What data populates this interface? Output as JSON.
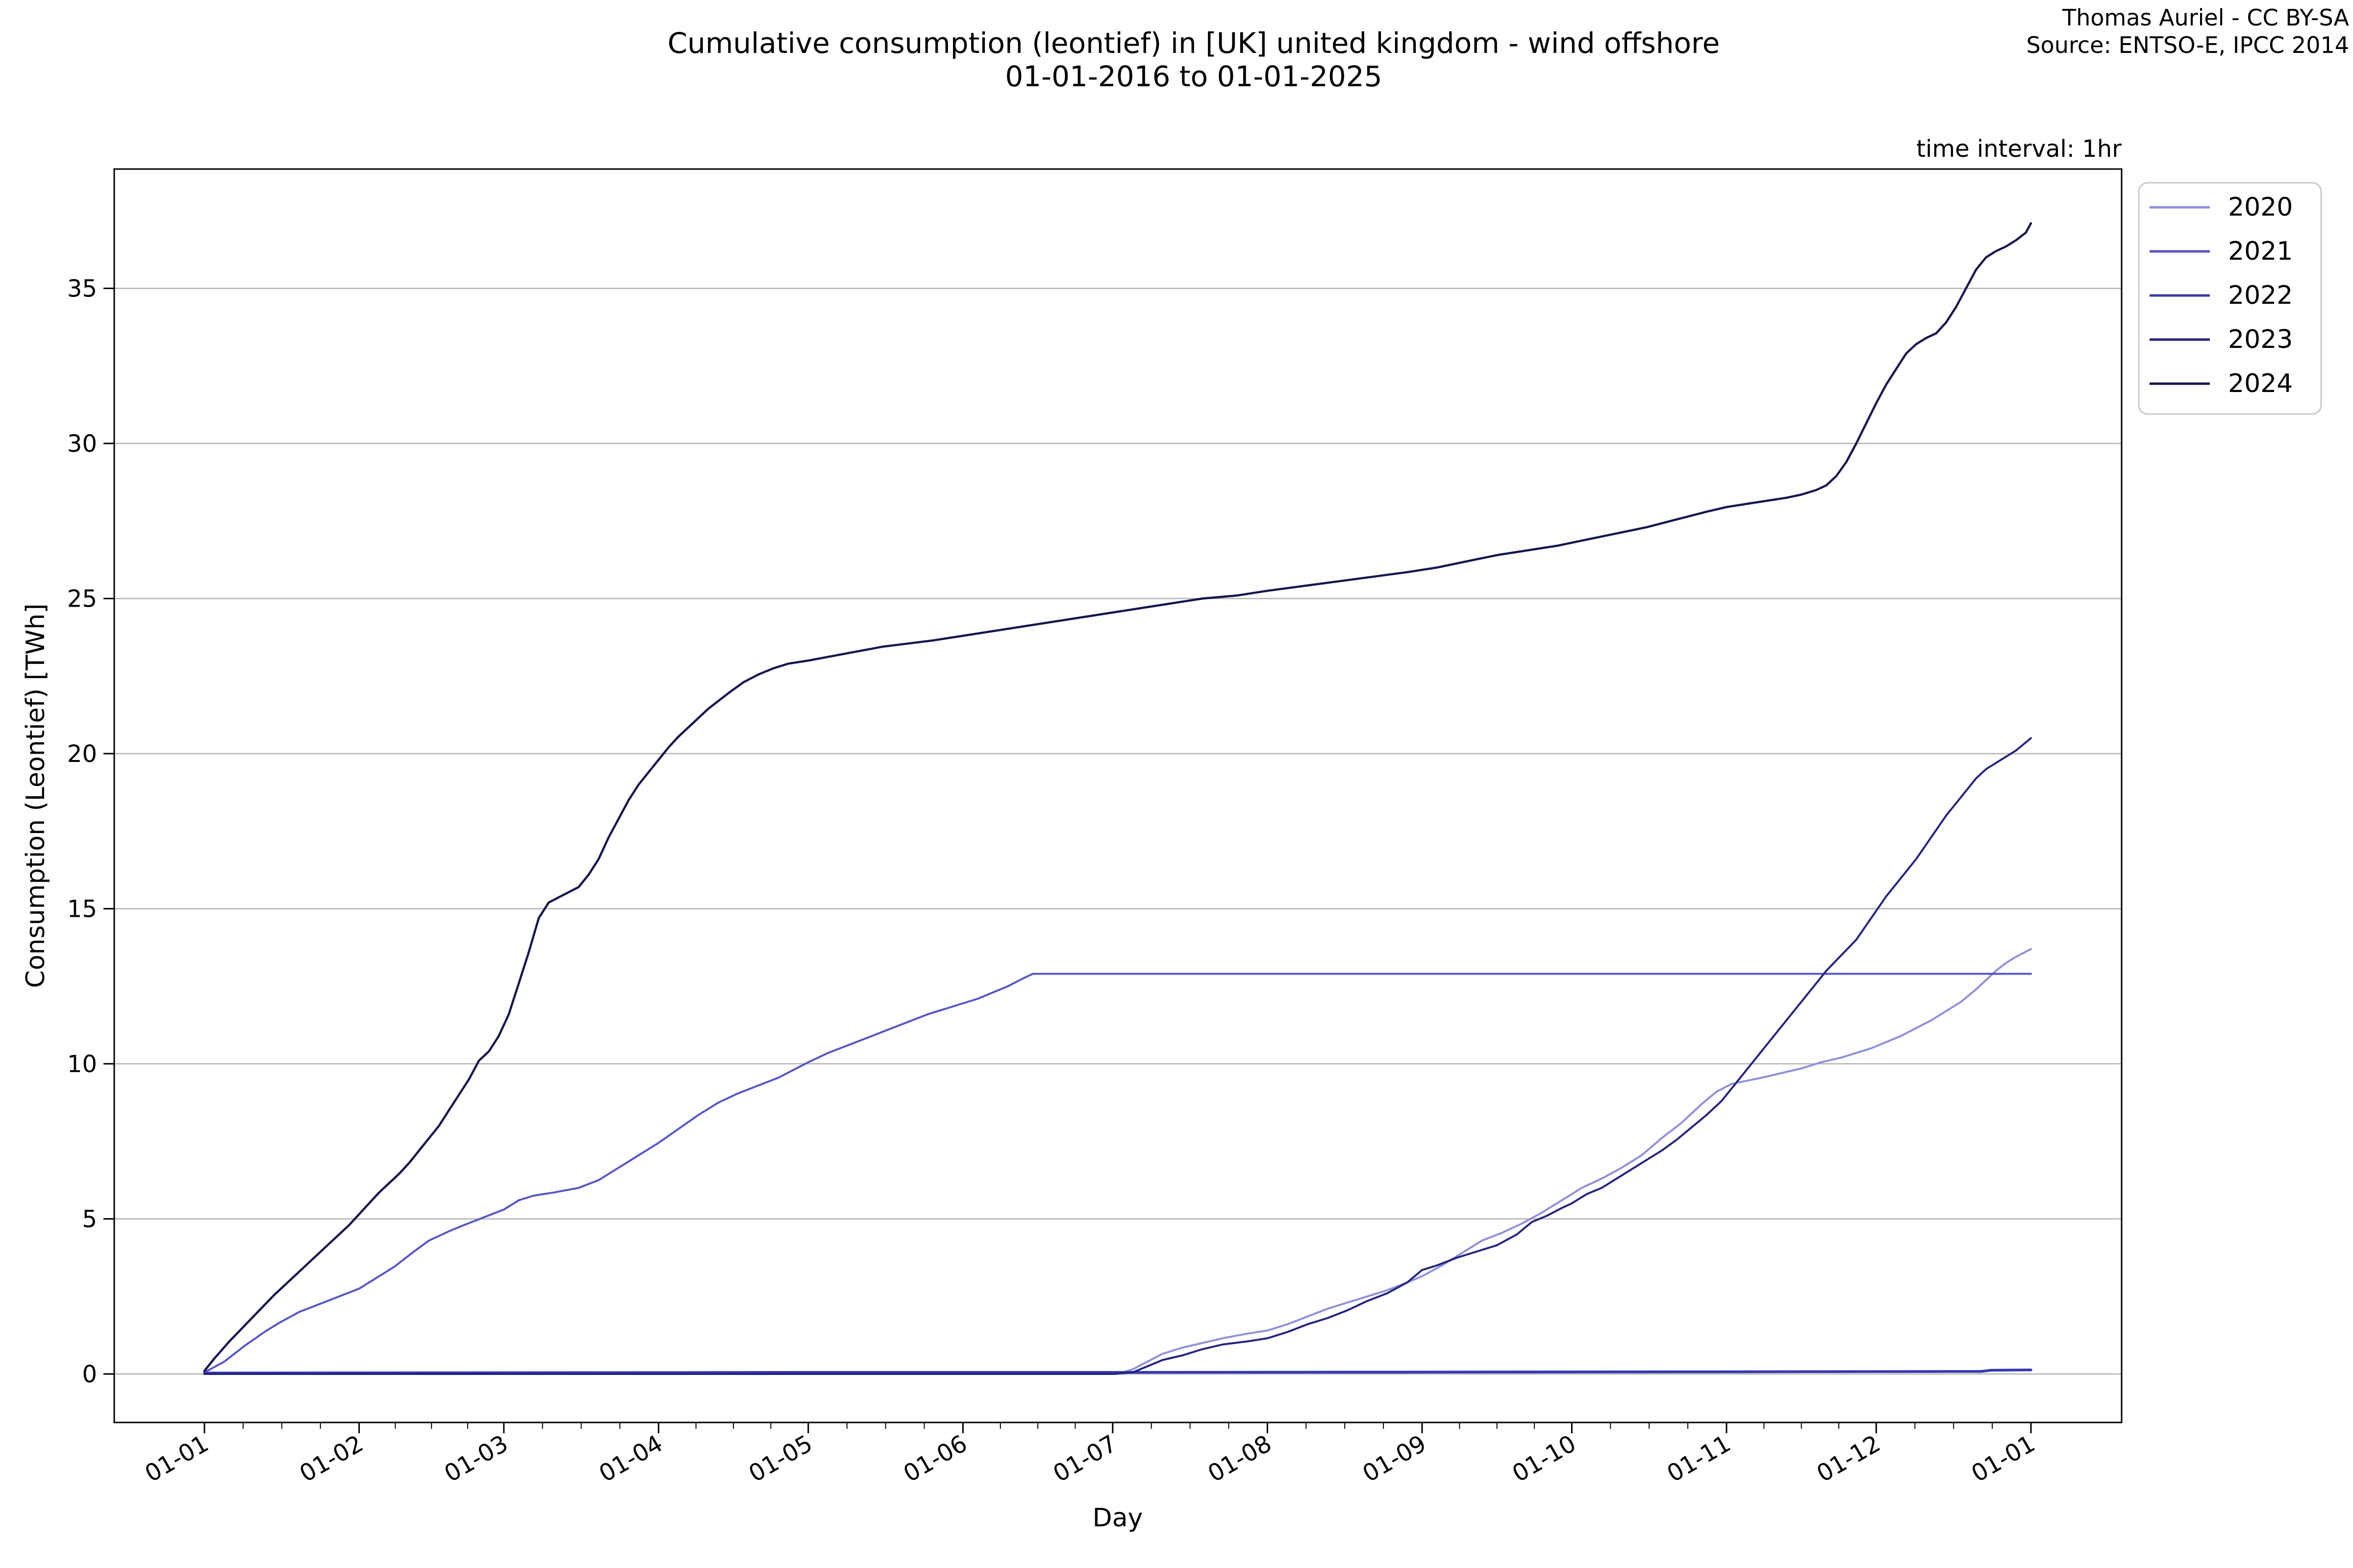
{
  "title": {
    "line1": "Cumulative consumption (leontief) in [UK] united kingdom - wind offshore",
    "line2": "01-01-2016 to 01-01-2025"
  },
  "attribution": {
    "line1": "Thomas Auriel - CC BY-SA",
    "line2": "Source: ENTSO-E, IPCC 2014"
  },
  "annotation": {
    "time_interval": "time interval: 1hr"
  },
  "axes": {
    "xlabel": "Day",
    "ylabel": "Consumption (Leontief) [TWh]",
    "y_ticks": [
      0,
      5,
      10,
      15,
      20,
      25,
      30,
      35
    ],
    "x_tick_labels": [
      "01-01",
      "01-02",
      "01-03",
      "01-04",
      "01-05",
      "01-06",
      "01-07",
      "01-08",
      "01-09",
      "01-10",
      "01-11",
      "01-12",
      "01-01"
    ],
    "x_tick_days": [
      0,
      31,
      60,
      91,
      121,
      152,
      182,
      213,
      244,
      274,
      305,
      335,
      366
    ]
  },
  "legend": {
    "labels": [
      "2020",
      "2021",
      "2022",
      "2023",
      "2024"
    ]
  },
  "colors": {
    "gridline": "#b3b3b3",
    "spine": "#000000",
    "background": "#ffffff",
    "legend_border": "#c9c9c9"
  },
  "chart_data": {
    "type": "line",
    "title": "Cumulative consumption (leontief) in [UK] united kingdom - wind offshore 01-01-2016 to 01-01-2025",
    "xlabel": "Day",
    "ylabel": "Consumption (Leontief) [TWh]",
    "x_unit": "day of year, 01-01 to next 01-01",
    "ylim": [
      -1.6,
      38.9
    ],
    "x_span_days": [
      0,
      366
    ],
    "grid": "horizontal gridlines only",
    "legend_position": "outside upper right",
    "series": [
      {
        "name": "2020",
        "color": "#8f8fdb",
        "width": 4,
        "points": [
          [
            0,
            0
          ],
          [
            183,
            0
          ],
          [
            186,
            0.15
          ],
          [
            189,
            0.4
          ],
          [
            192,
            0.65
          ],
          [
            196,
            0.85
          ],
          [
            200,
            1.0
          ],
          [
            204,
            1.15
          ],
          [
            209,
            1.3
          ],
          [
            213,
            1.4
          ],
          [
            217,
            1.6
          ],
          [
            221,
            1.85
          ],
          [
            225,
            2.1
          ],
          [
            229,
            2.3
          ],
          [
            233,
            2.5
          ],
          [
            237,
            2.7
          ],
          [
            241,
            2.95
          ],
          [
            244,
            3.15
          ],
          [
            248,
            3.5
          ],
          [
            252,
            3.9
          ],
          [
            256,
            4.3
          ],
          [
            260,
            4.55
          ],
          [
            264,
            4.85
          ],
          [
            268,
            5.2
          ],
          [
            272,
            5.6
          ],
          [
            276,
            6.0
          ],
          [
            280,
            6.3
          ],
          [
            284,
            6.65
          ],
          [
            288,
            7.05
          ],
          [
            292,
            7.6
          ],
          [
            296,
            8.1
          ],
          [
            300,
            8.7
          ],
          [
            303,
            9.1
          ],
          [
            306,
            9.35
          ],
          [
            309,
            9.45
          ],
          [
            312,
            9.55
          ],
          [
            316,
            9.7
          ],
          [
            320,
            9.85
          ],
          [
            324,
            10.05
          ],
          [
            328,
            10.2
          ],
          [
            331,
            10.35
          ],
          [
            334,
            10.5
          ],
          [
            337,
            10.7
          ],
          [
            340,
            10.9
          ],
          [
            343,
            11.15
          ],
          [
            346,
            11.4
          ],
          [
            349,
            11.7
          ],
          [
            352,
            12.0
          ],
          [
            355,
            12.4
          ],
          [
            357,
            12.7
          ],
          [
            359,
            13.0
          ],
          [
            361,
            13.25
          ],
          [
            363,
            13.45
          ],
          [
            366,
            13.7
          ]
        ]
      },
      {
        "name": "2021",
        "color": "#5656c9",
        "width": 4,
        "points": [
          [
            0,
            0.05
          ],
          [
            4,
            0.4
          ],
          [
            8,
            0.9
          ],
          [
            12,
            1.35
          ],
          [
            15,
            1.65
          ],
          [
            19,
            2.0
          ],
          [
            23,
            2.25
          ],
          [
            27,
            2.5
          ],
          [
            31,
            2.75
          ],
          [
            34,
            3.05
          ],
          [
            38,
            3.45
          ],
          [
            42,
            3.95
          ],
          [
            45,
            4.3
          ],
          [
            49,
            4.6
          ],
          [
            52,
            4.8
          ],
          [
            56,
            5.05
          ],
          [
            60,
            5.3
          ],
          [
            63,
            5.6
          ],
          [
            66,
            5.75
          ],
          [
            70,
            5.85
          ],
          [
            75,
            6.0
          ],
          [
            79,
            6.25
          ],
          [
            83,
            6.65
          ],
          [
            87,
            7.05
          ],
          [
            91,
            7.45
          ],
          [
            95,
            7.9
          ],
          [
            99,
            8.35
          ],
          [
            103,
            8.75
          ],
          [
            107,
            9.05
          ],
          [
            111,
            9.3
          ],
          [
            115,
            9.55
          ],
          [
            118,
            9.8
          ],
          [
            121,
            10.05
          ],
          [
            125,
            10.35
          ],
          [
            129,
            10.6
          ],
          [
            133,
            10.85
          ],
          [
            137,
            11.1
          ],
          [
            141,
            11.35
          ],
          [
            145,
            11.6
          ],
          [
            149,
            11.8
          ],
          [
            152,
            11.95
          ],
          [
            155,
            12.1
          ],
          [
            158,
            12.3
          ],
          [
            161,
            12.5
          ],
          [
            164,
            12.75
          ],
          [
            166,
            12.9
          ],
          [
            366,
            12.9
          ]
        ]
      },
      {
        "name": "2022",
        "color": "#3737b2",
        "width": 5.5,
        "points": [
          [
            0,
            0.03
          ],
          [
            60,
            0.04
          ],
          [
            120,
            0.05
          ],
          [
            180,
            0.05
          ],
          [
            240,
            0.06
          ],
          [
            300,
            0.07
          ],
          [
            350,
            0.08
          ],
          [
            356,
            0.08
          ],
          [
            358,
            0.12
          ],
          [
            366,
            0.13
          ]
        ]
      },
      {
        "name": "2023",
        "color": "#232380",
        "width": 4,
        "points": [
          [
            0,
            0
          ],
          [
            182,
            0
          ],
          [
            186,
            0.05
          ],
          [
            189,
            0.25
          ],
          [
            192,
            0.45
          ],
          [
            196,
            0.6
          ],
          [
            200,
            0.8
          ],
          [
            204,
            0.95
          ],
          [
            209,
            1.05
          ],
          [
            213,
            1.15
          ],
          [
            217,
            1.35
          ],
          [
            221,
            1.6
          ],
          [
            225,
            1.8
          ],
          [
            229,
            2.05
          ],
          [
            233,
            2.35
          ],
          [
            237,
            2.6
          ],
          [
            241,
            2.95
          ],
          [
            244,
            3.35
          ],
          [
            247,
            3.5
          ],
          [
            251,
            3.75
          ],
          [
            255,
            3.95
          ],
          [
            259,
            4.15
          ],
          [
            263,
            4.5
          ],
          [
            266,
            4.9
          ],
          [
            269,
            5.1
          ],
          [
            272,
            5.35
          ],
          [
            274,
            5.5
          ],
          [
            277,
            5.8
          ],
          [
            280,
            6.0
          ],
          [
            283,
            6.3
          ],
          [
            286,
            6.6
          ],
          [
            289,
            6.9
          ],
          [
            292,
            7.2
          ],
          [
            295,
            7.55
          ],
          [
            298,
            7.95
          ],
          [
            301,
            8.35
          ],
          [
            304,
            8.8
          ],
          [
            307,
            9.4
          ],
          [
            310,
            10.0
          ],
          [
            313,
            10.6
          ],
          [
            316,
            11.2
          ],
          [
            319,
            11.8
          ],
          [
            322,
            12.4
          ],
          [
            325,
            13.0
          ],
          [
            328,
            13.5
          ],
          [
            331,
            14.0
          ],
          [
            334,
            14.7
          ],
          [
            337,
            15.4
          ],
          [
            340,
            16.0
          ],
          [
            343,
            16.6
          ],
          [
            346,
            17.3
          ],
          [
            349,
            18.0
          ],
          [
            352,
            18.6
          ],
          [
            355,
            19.2
          ],
          [
            357,
            19.5
          ],
          [
            359,
            19.7
          ],
          [
            361,
            19.9
          ],
          [
            363,
            20.1
          ],
          [
            366,
            20.5
          ]
        ]
      },
      {
        "name": "2024",
        "color": "#16164e",
        "width": 4.5,
        "points": [
          [
            0,
            0.1
          ],
          [
            2,
            0.5
          ],
          [
            5,
            1.05
          ],
          [
            8,
            1.55
          ],
          [
            11,
            2.05
          ],
          [
            14,
            2.55
          ],
          [
            17,
            3.0
          ],
          [
            20,
            3.45
          ],
          [
            23,
            3.9
          ],
          [
            26,
            4.35
          ],
          [
            29,
            4.8
          ],
          [
            31,
            5.15
          ],
          [
            33,
            5.5
          ],
          [
            35,
            5.85
          ],
          [
            37,
            6.15
          ],
          [
            39,
            6.45
          ],
          [
            41,
            6.8
          ],
          [
            43,
            7.2
          ],
          [
            45,
            7.6
          ],
          [
            47,
            8.0
          ],
          [
            49,
            8.5
          ],
          [
            51,
            9.0
          ],
          [
            53,
            9.5
          ],
          [
            55,
            10.1
          ],
          [
            57,
            10.4
          ],
          [
            59,
            10.9
          ],
          [
            61,
            11.6
          ],
          [
            63,
            12.6
          ],
          [
            65,
            13.6
          ],
          [
            67,
            14.7
          ],
          [
            69,
            15.2
          ],
          [
            72,
            15.45
          ],
          [
            75,
            15.7
          ],
          [
            77,
            16.1
          ],
          [
            79,
            16.6
          ],
          [
            81,
            17.3
          ],
          [
            83,
            17.9
          ],
          [
            85,
            18.5
          ],
          [
            87,
            19.0
          ],
          [
            89,
            19.4
          ],
          [
            91,
            19.8
          ],
          [
            93,
            20.2
          ],
          [
            95,
            20.55
          ],
          [
            97,
            20.85
          ],
          [
            99,
            21.15
          ],
          [
            101,
            21.45
          ],
          [
            103,
            21.7
          ],
          [
            105,
            21.95
          ],
          [
            108,
            22.3
          ],
          [
            111,
            22.55
          ],
          [
            114,
            22.75
          ],
          [
            117,
            22.9
          ],
          [
            121,
            23.0
          ],
          [
            126,
            23.15
          ],
          [
            131,
            23.3
          ],
          [
            136,
            23.45
          ],
          [
            141,
            23.55
          ],
          [
            146,
            23.65
          ],
          [
            152,
            23.8
          ],
          [
            158,
            23.95
          ],
          [
            164,
            24.1
          ],
          [
            170,
            24.25
          ],
          [
            176,
            24.4
          ],
          [
            182,
            24.55
          ],
          [
            188,
            24.7
          ],
          [
            194,
            24.85
          ],
          [
            200,
            25.0
          ],
          [
            207,
            25.1
          ],
          [
            213,
            25.25
          ],
          [
            220,
            25.4
          ],
          [
            227,
            25.55
          ],
          [
            234,
            25.7
          ],
          [
            241,
            25.85
          ],
          [
            247,
            26.0
          ],
          [
            253,
            26.2
          ],
          [
            259,
            26.4
          ],
          [
            265,
            26.55
          ],
          [
            271,
            26.7
          ],
          [
            277,
            26.9
          ],
          [
            283,
            27.1
          ],
          [
            289,
            27.3
          ],
          [
            295,
            27.55
          ],
          [
            301,
            27.8
          ],
          [
            305,
            27.95
          ],
          [
            309,
            28.05
          ],
          [
            313,
            28.15
          ],
          [
            317,
            28.25
          ],
          [
            320,
            28.35
          ],
          [
            323,
            28.5
          ],
          [
            325,
            28.65
          ],
          [
            327,
            28.95
          ],
          [
            329,
            29.4
          ],
          [
            331,
            30.0
          ],
          [
            333,
            30.65
          ],
          [
            335,
            31.3
          ],
          [
            337,
            31.9
          ],
          [
            339,
            32.4
          ],
          [
            341,
            32.9
          ],
          [
            343,
            33.2
          ],
          [
            345,
            33.4
          ],
          [
            347,
            33.55
          ],
          [
            349,
            33.9
          ],
          [
            351,
            34.4
          ],
          [
            353,
            35.0
          ],
          [
            355,
            35.6
          ],
          [
            357,
            36.0
          ],
          [
            359,
            36.2
          ],
          [
            361,
            36.35
          ],
          [
            363,
            36.55
          ],
          [
            365,
            36.8
          ],
          [
            366,
            37.1
          ]
        ]
      }
    ]
  }
}
